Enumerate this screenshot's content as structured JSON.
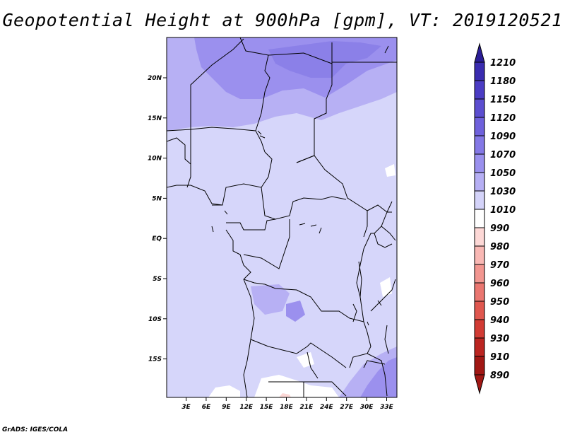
{
  "title": "Geopotential Height at 900hPa [gpm], VT: 2019120521",
  "credit": "GrADS: IGES/COLA",
  "lat_ticks": [
    "20N",
    "15N",
    "10N",
    "5N",
    "EQ",
    "5S",
    "10S",
    "15S"
  ],
  "lon_ticks": [
    "3E",
    "6E",
    "9E",
    "12E",
    "15E",
    "18E",
    "21E",
    "24E",
    "27E",
    "30E",
    "33E"
  ],
  "colorbar": {
    "levels": [
      "1210",
      "1180",
      "1150",
      "1120",
      "1090",
      "1070",
      "1050",
      "1030",
      "1010",
      "990",
      "980",
      "970",
      "960",
      "950",
      "940",
      "930",
      "910",
      "890"
    ],
    "colors": [
      "#2b1e96",
      "#3a2cb0",
      "#4b3cc4",
      "#5c4ed0",
      "#6f61dc",
      "#8478e6",
      "#9a90ee",
      "#b6aff4",
      "#d4d3f9",
      "#ffffff",
      "#fdd8d6",
      "#f9b8b4",
      "#f29690",
      "#ea7670",
      "#e0574f",
      "#d23b34",
      "#bb2521",
      "#a11714"
    ]
  }
}
